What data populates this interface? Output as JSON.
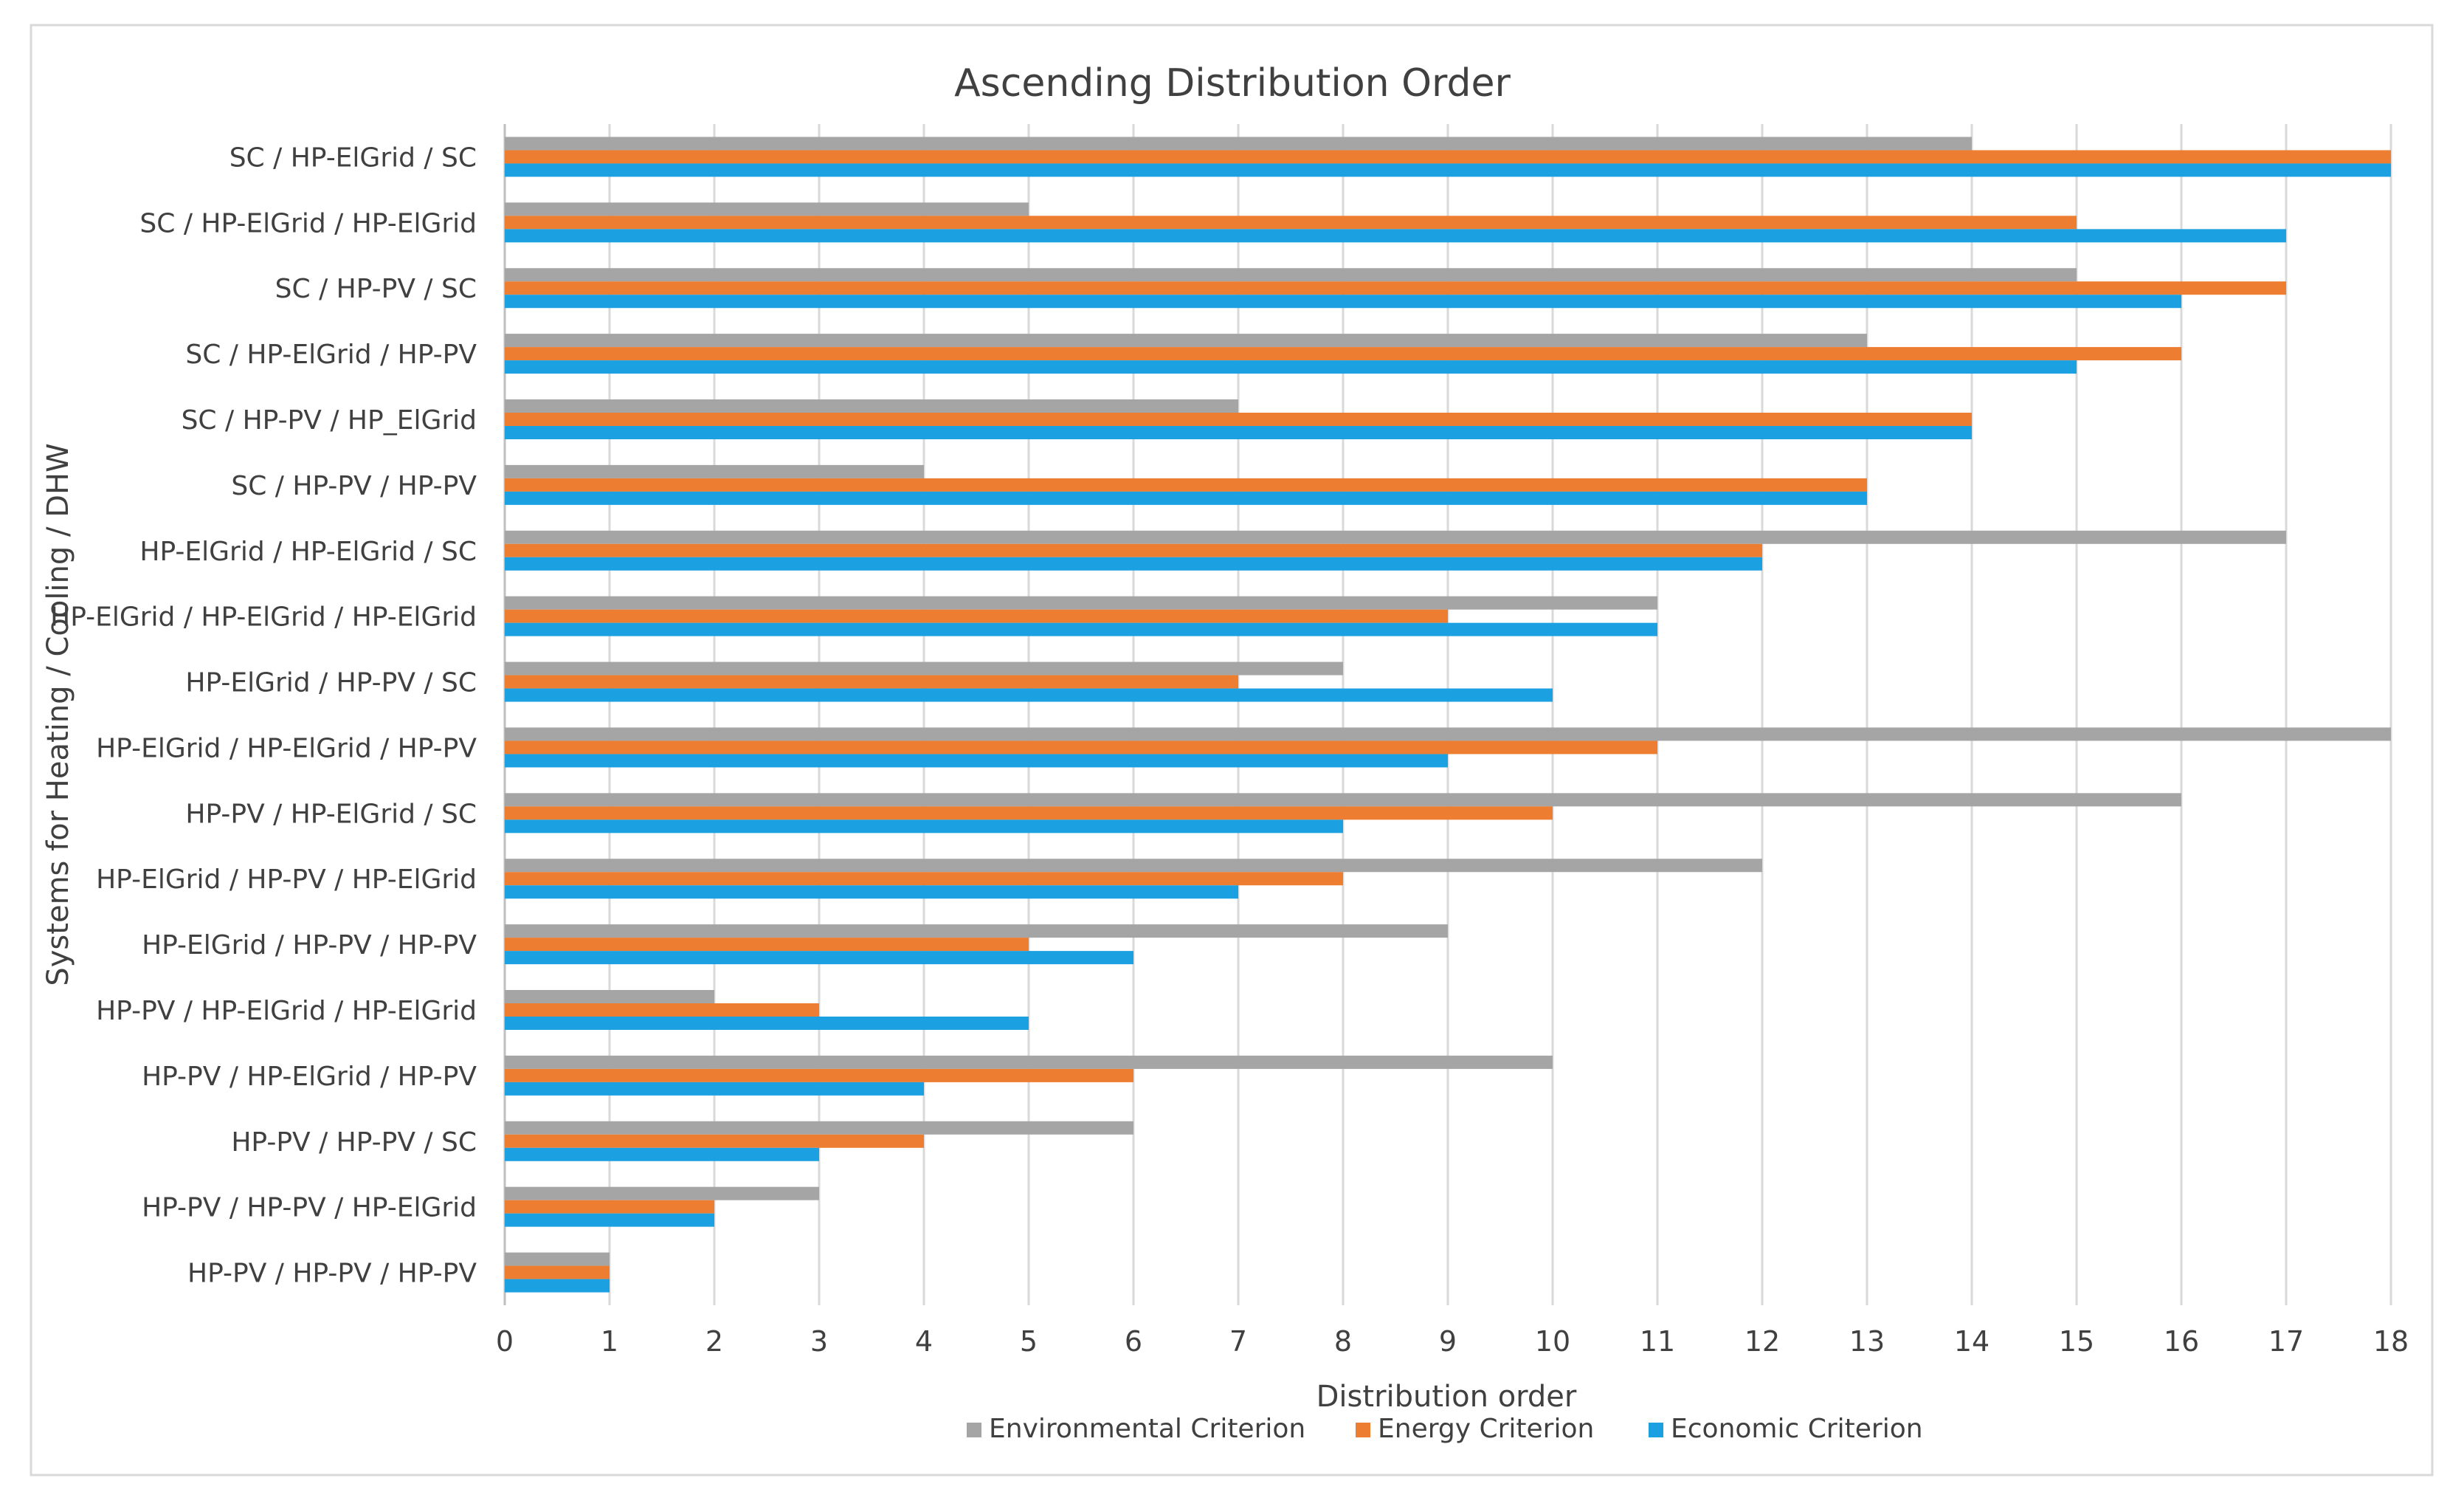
{
  "chart_data": {
    "type": "bar",
    "orientation": "horizontal",
    "title": "Ascending Distribution Order",
    "xlabel": "Distribution order",
    "ylabel": "Systems for Heating / Cooling / DHW",
    "xlim": [
      0,
      18
    ],
    "x_ticks": [
      0,
      1,
      2,
      3,
      4,
      5,
      6,
      7,
      8,
      9,
      10,
      11,
      12,
      13,
      14,
      15,
      16,
      17,
      18
    ],
    "grid": "vertical",
    "legend_position": "bottom",
    "categories": [
      "SC / HP-ElGrid / SC",
      "SC / HP-ElGrid / HP-ElGrid",
      "SC / HP-PV / SC",
      "SC / HP-ElGrid / HP-PV",
      "SC / HP-PV / HP_ElGrid",
      "SC / HP-PV / HP-PV",
      "HP-ElGrid / HP-ElGrid / SC",
      "HP-ElGrid / HP-ElGrid / HP-ElGrid",
      "HP-ElGrid / HP-PV / SC",
      "HP-ElGrid / HP-ElGrid / HP-PV",
      "HP-PV / HP-ElGrid / SC",
      "HP-ElGrid / HP-PV / HP-ElGrid",
      "HP-ElGrid / HP-PV / HP-PV",
      "HP-PV / HP-ElGrid / HP-ElGrid",
      "HP-PV / HP-ElGrid / HP-PV",
      "HP-PV / HP-PV / SC",
      "HP-PV / HP-PV / HP-ElGrid",
      "HP-PV / HP-PV / HP-PV"
    ],
    "series": [
      {
        "name": "Environmental Criterion",
        "color": "#a5a5a5",
        "values": [
          14,
          5,
          15,
          13,
          7,
          4,
          17,
          11,
          8,
          18,
          16,
          12,
          9,
          2,
          10,
          6,
          3,
          1
        ]
      },
      {
        "name": "Energy Criterion",
        "color": "#ed7d31",
        "values": [
          18,
          15,
          17,
          16,
          14,
          13,
          12,
          9,
          7,
          11,
          10,
          8,
          5,
          3,
          6,
          4,
          2,
          1
        ]
      },
      {
        "name": "Economic Criterion",
        "color": "#1ba1e2",
        "values": [
          18,
          17,
          16,
          15,
          14,
          13,
          12,
          11,
          10,
          9,
          8,
          7,
          6,
          5,
          4,
          3,
          2,
          1
        ]
      }
    ]
  },
  "colors": {
    "text": "#404040",
    "grid": "#d9d9d9",
    "axis": "#bfbfbf",
    "border": "#d9d9d9"
  }
}
